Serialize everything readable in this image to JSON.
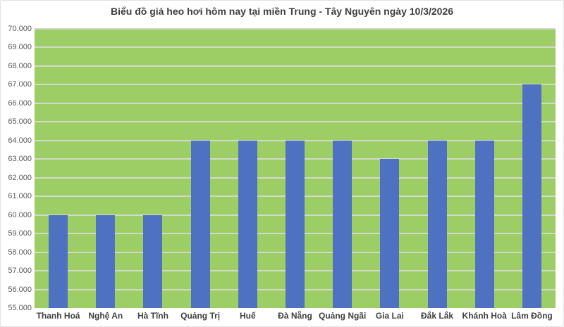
{
  "chart_data": {
    "type": "bar",
    "title": "Biểu đồ giá heo hơi hôm nay tại miền Trung - Tây Nguyên ngày 10/3/2026",
    "categories": [
      "Thanh Hoá",
      "Nghệ An",
      "Hà Tĩnh",
      "Quảng Trị",
      "Huế",
      "Đà Nẵng",
      "Quảng Ngãi",
      "Gia Lai",
      "Đắk Lắk",
      "Khánh Hoà",
      "Lâm Đồng"
    ],
    "values": [
      60000,
      60000,
      60000,
      64000,
      64000,
      64000,
      64000,
      63000,
      64000,
      64000,
      67000
    ],
    "xlabel": "",
    "ylabel": "",
    "ylim": [
      55000,
      70000
    ],
    "ytick_step": 1000,
    "yticks": [
      {
        "value": 55000,
        "label": "55.000"
      },
      {
        "value": 56000,
        "label": "56.000"
      },
      {
        "value": 57000,
        "label": "57.000"
      },
      {
        "value": 58000,
        "label": "58.000"
      },
      {
        "value": 59000,
        "label": "59.000"
      },
      {
        "value": 60000,
        "label": "60.000"
      },
      {
        "value": 61000,
        "label": "61.000"
      },
      {
        "value": 62000,
        "label": "62.000"
      },
      {
        "value": 63000,
        "label": "63.000"
      },
      {
        "value": 64000,
        "label": "64.000"
      },
      {
        "value": 65000,
        "label": "65.000"
      },
      {
        "value": 66000,
        "label": "66.000"
      },
      {
        "value": 67000,
        "label": "67.000"
      },
      {
        "value": 68000,
        "label": "68.000"
      },
      {
        "value": 69000,
        "label": "69.000"
      },
      {
        "value": 70000,
        "label": "70.000"
      }
    ],
    "grid": true,
    "legend": false,
    "colors": {
      "bar": "#4E72C1",
      "plot_bg": "#9DCD65",
      "gridline": "#D3D9C9",
      "title_text": "#3F3F3F",
      "axis_text": "#595959",
      "xlabel_text": "#404040",
      "border": "#E2E2E2",
      "background": "#FFFFFF"
    }
  }
}
